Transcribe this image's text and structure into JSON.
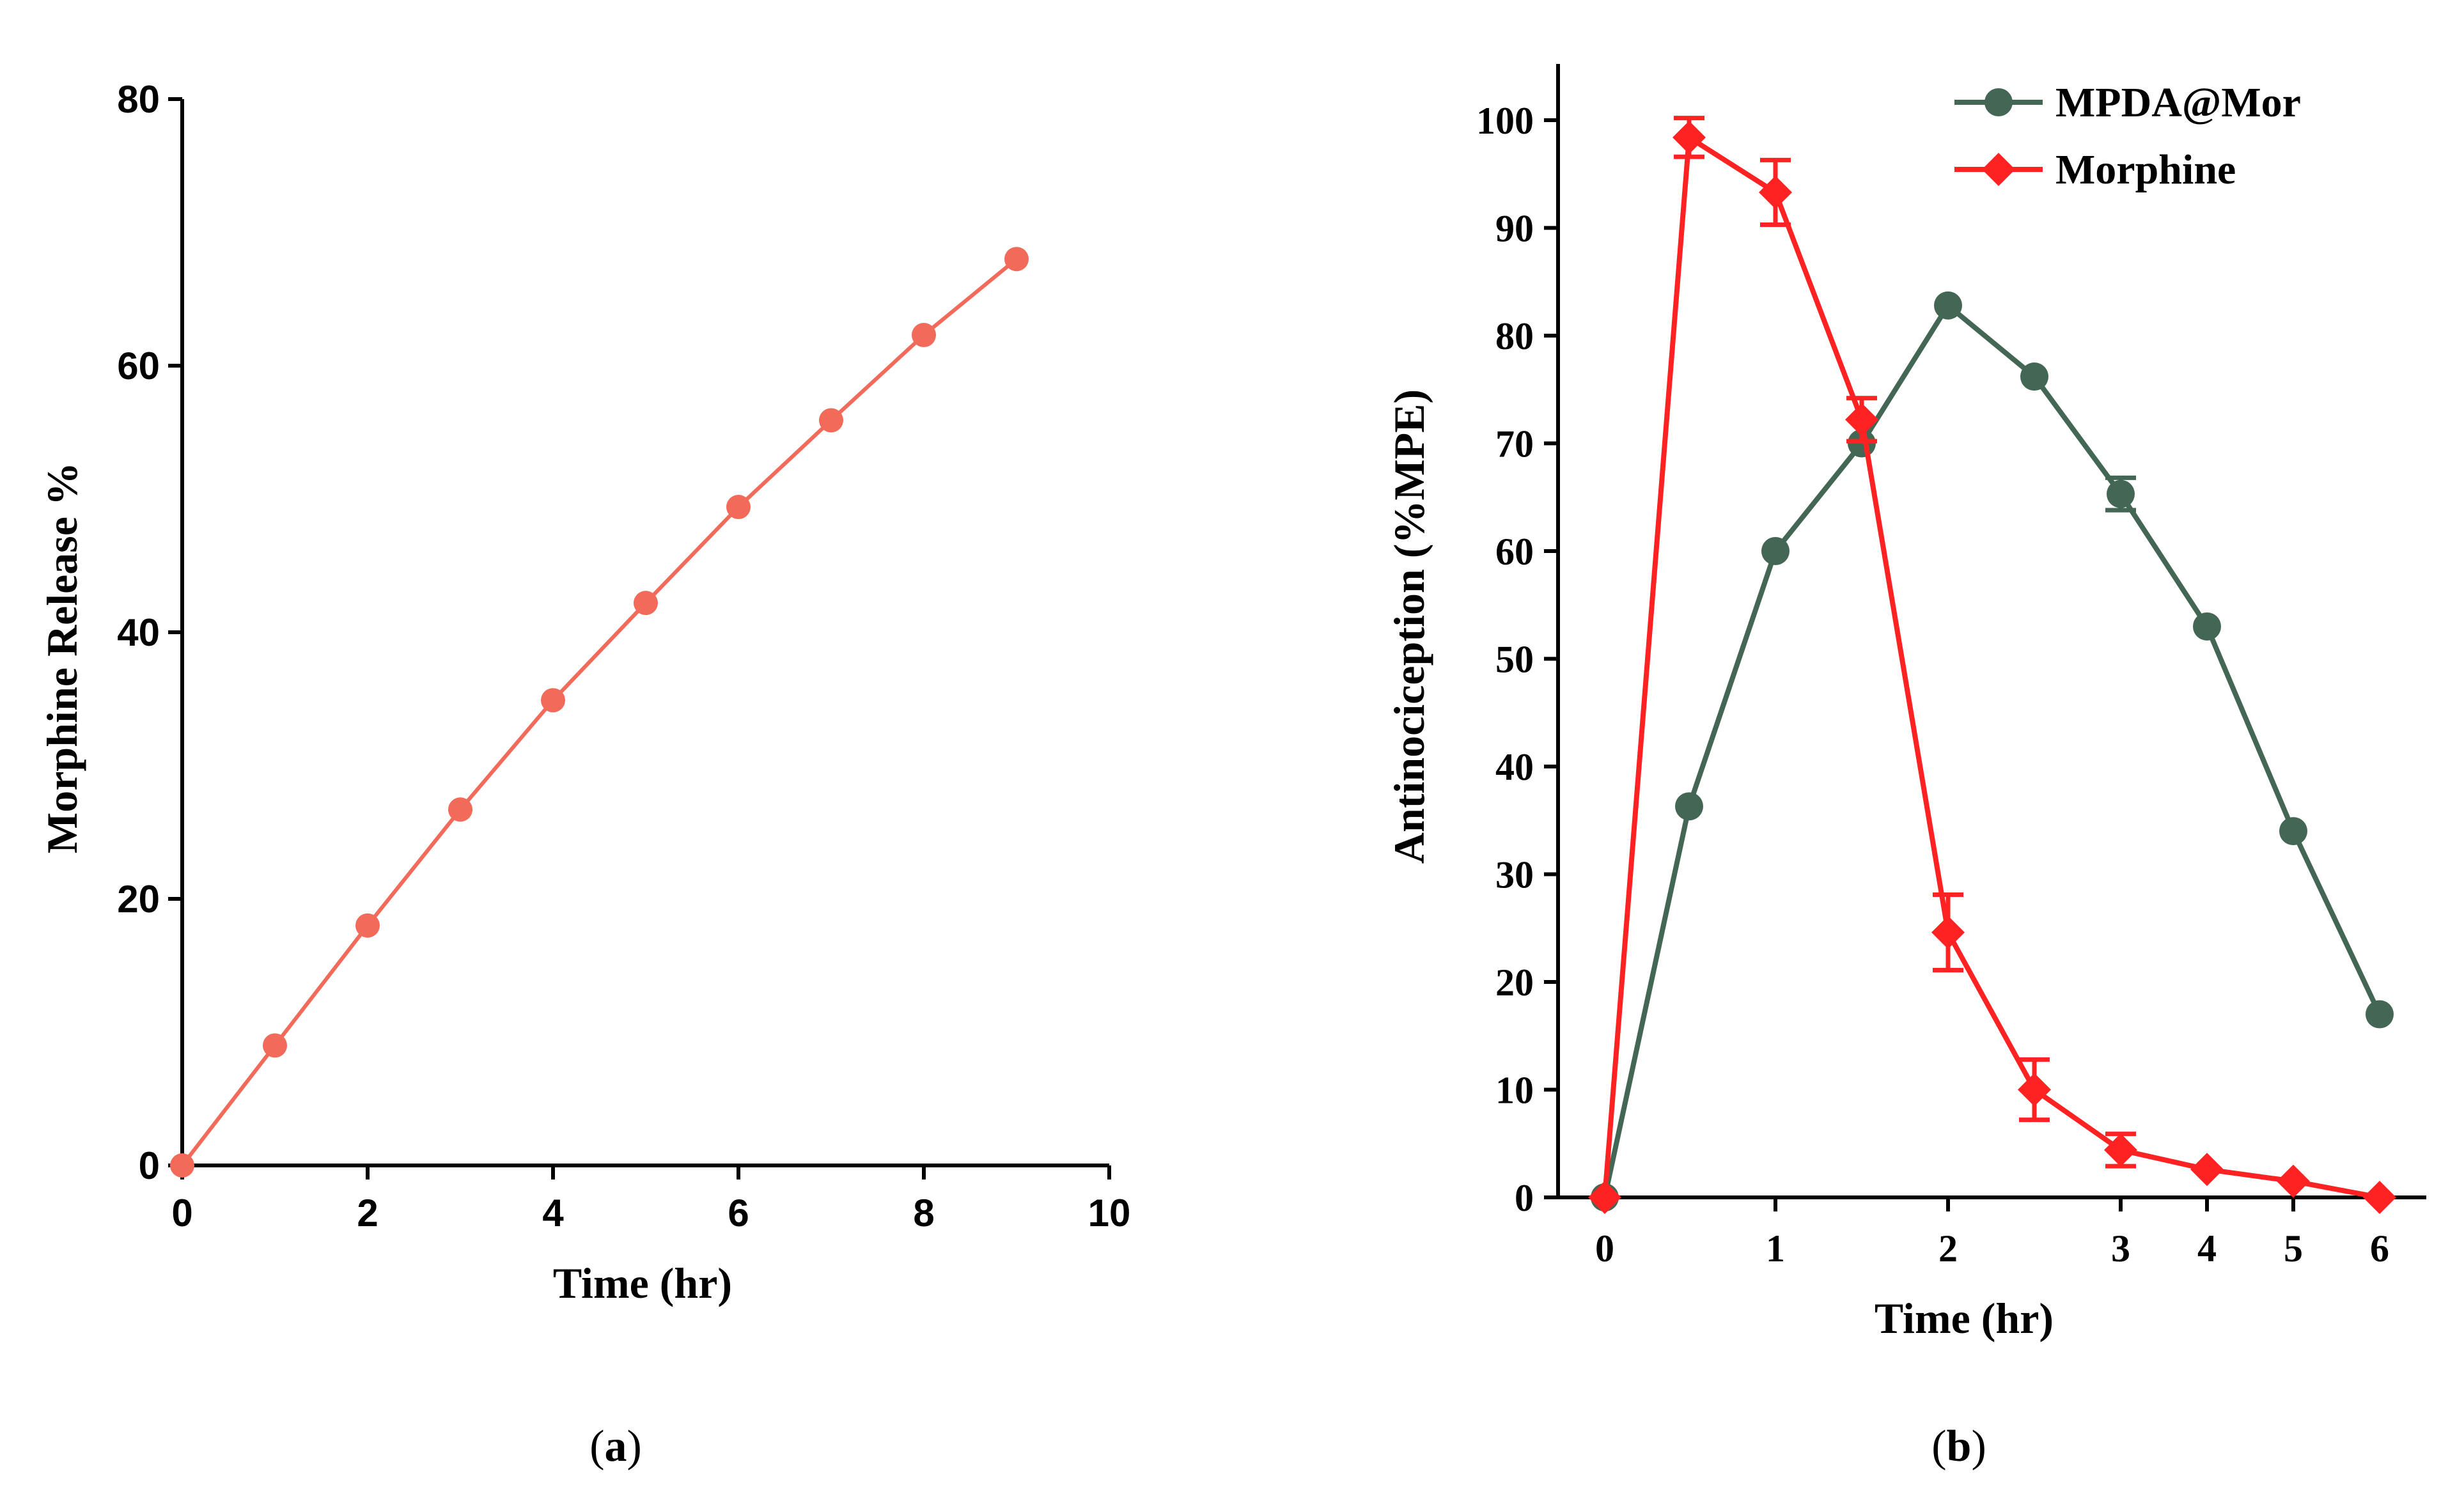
{
  "chart_data": [
    {
      "type": "line",
      "panel_label": "a",
      "title": "",
      "xlabel": "Time (hr)",
      "ylabel": "Morphine Release %",
      "xlim": [
        0,
        10
      ],
      "ylim": [
        0,
        80
      ],
      "xticks": [
        "0",
        "2",
        "4",
        "6",
        "8",
        "10"
      ],
      "yticks": [
        "0",
        "20",
        "40",
        "60",
        "80"
      ],
      "series": [
        {
          "name": "Morphine Release",
          "color": "#f26a5a",
          "marker": "circle",
          "x": [
            0,
            1,
            2,
            3,
            4,
            5,
            6,
            7,
            8,
            9
          ],
          "values": [
            0,
            9,
            18,
            26.7,
            34.9,
            42.2,
            49.4,
            55.9,
            62.3,
            68
          ]
        }
      ]
    },
    {
      "type": "line",
      "panel_label": "b",
      "title": "",
      "xlabel": "Time (hr)",
      "ylabel": "Antinociception (%MPE)",
      "ylim": [
        0,
        100
      ],
      "xticks": [
        "0",
        "1",
        "2",
        "3",
        "4",
        "5",
        "6"
      ],
      "yticks": [
        "0",
        "10",
        "20",
        "30",
        "40",
        "50",
        "60",
        "70",
        "80",
        "90",
        "100"
      ],
      "legend_position": "top-right",
      "series": [
        {
          "name": "MPDA@Mor",
          "color": "#446655",
          "marker": "circle",
          "x": [
            0,
            0.5,
            1,
            1.5,
            2,
            2.5,
            3,
            4,
            5,
            6
          ],
          "values": [
            0,
            36.3,
            60,
            70,
            82.8,
            76.2,
            65.3,
            53,
            34,
            17
          ],
          "errors": [
            0,
            0,
            0,
            0,
            0,
            0,
            1.5,
            0,
            0,
            0
          ]
        },
        {
          "name": "Morphine",
          "color": "#ff2222",
          "marker": "diamond",
          "x": [
            0,
            0.5,
            1,
            1.5,
            2,
            2.5,
            3,
            4,
            5,
            6
          ],
          "values": [
            0,
            98.4,
            93.3,
            72.2,
            24.6,
            10,
            4.4,
            2.6,
            1.5,
            0
          ],
          "errors": [
            0,
            1.8,
            3,
            2,
            3.5,
            2.8,
            1.5,
            0,
            0,
            0
          ]
        }
      ]
    }
  ]
}
